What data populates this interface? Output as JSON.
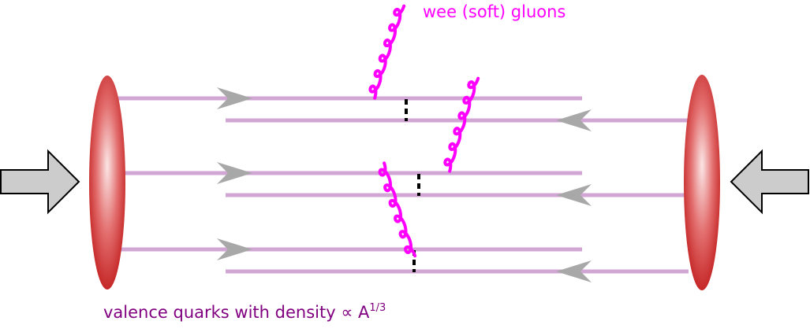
{
  "labels": {
    "gluons": "wee (soft) gluons",
    "quarks_prefix": "valence quarks with density ∝ A",
    "quarks_exponent": "1/3"
  },
  "colors": {
    "quark_line": "#d1a6d4",
    "arrow_head": "#a8a8a8",
    "gluon": "#ff00ff",
    "nucleus_core": "#fbe6e6",
    "nucleus_edge": "#c62828",
    "beam_arrow_fill": "#cccccc",
    "quarks_label": "#800080",
    "gluons_label": "#ff00ff",
    "exchange_mark": "#000000"
  },
  "icons": {
    "left_beam": "right-arrow",
    "right_beam": "left-arrow",
    "nucleus": "ellipse"
  }
}
